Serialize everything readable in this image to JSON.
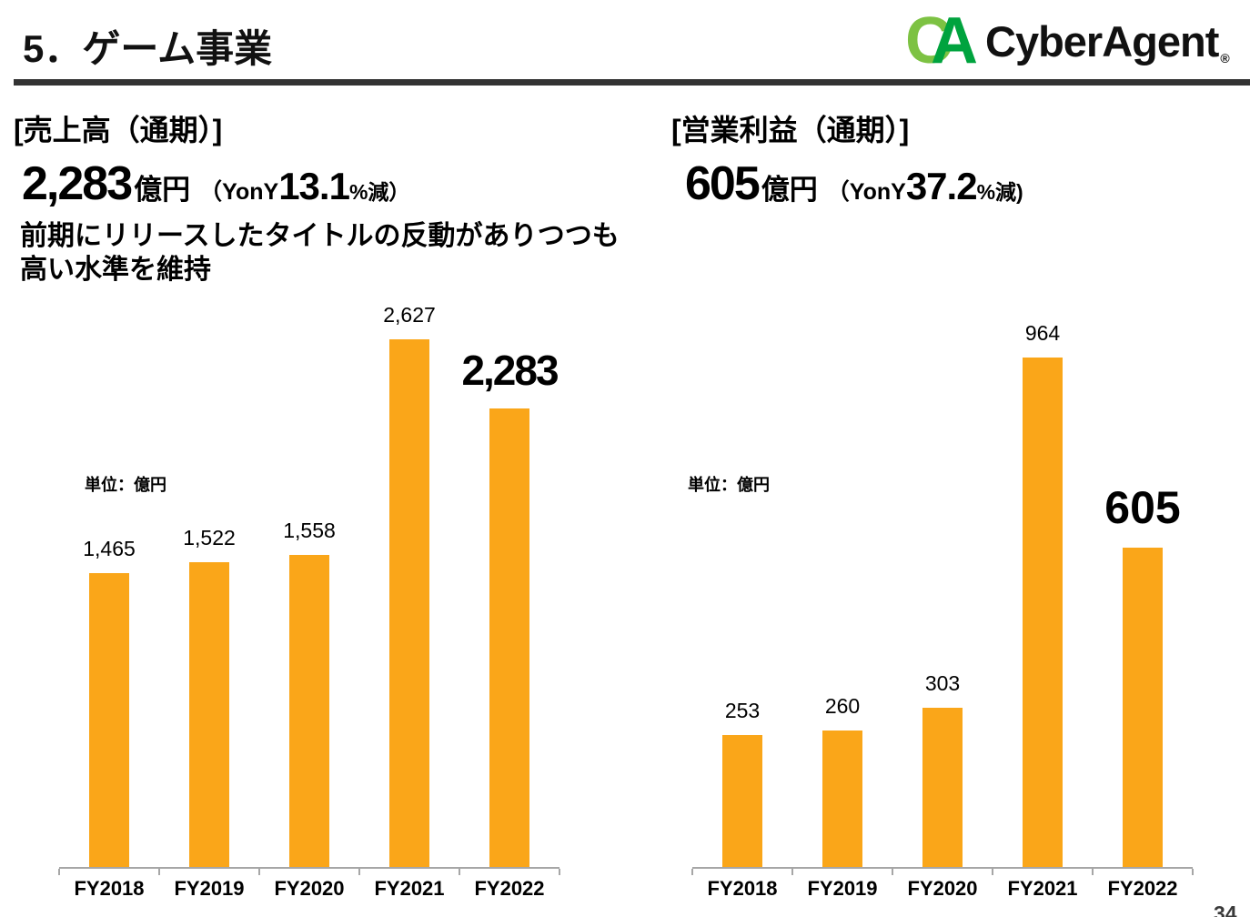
{
  "header": {
    "title": "5．ゲーム事業",
    "logo": {
      "mark_c": "C",
      "mark_a": "A",
      "text": "CyberAgent",
      "reg": "®"
    }
  },
  "panels": {
    "revenue": {
      "bracket_title": "[売上高（通期）]",
      "amount": "2,283",
      "unit": "億円",
      "yoy_prefix": "（YonY",
      "yoy_value": "13.1",
      "yoy_suffix": "%減）",
      "description_line1": "前期にリリースしたタイトルの反動がありつつも",
      "description_line2": "高い水準を維持"
    },
    "operating_profit": {
      "bracket_title": "[営業利益（通期）]",
      "amount": "605",
      "unit": "億円",
      "yoy_prefix": "（YonY ",
      "yoy_value": "37.2",
      "yoy_suffix": "%減)"
    }
  },
  "chart_data": [
    {
      "type": "bar",
      "title": "売上高（通期）",
      "unit_label": "単位：億円",
      "categories": [
        "FY2018",
        "FY2019",
        "FY2020",
        "FY2021",
        "FY2022"
      ],
      "values": [
        1465,
        1522,
        1558,
        2627,
        2283
      ],
      "value_labels": [
        "1,465",
        "1,522",
        "1,558",
        "2,627",
        "2,283"
      ],
      "emphasis_index": 4,
      "xlabel": "",
      "ylabel": "億円",
      "ylim": [
        0,
        2700
      ],
      "grid": false,
      "legend": "none",
      "bar_color": "#FAA619"
    },
    {
      "type": "bar",
      "title": "営業利益（通期）",
      "unit_label": "単位：億円",
      "categories": [
        "FY2018",
        "FY2019",
        "FY2020",
        "FY2021",
        "FY2022"
      ],
      "values": [
        253,
        260,
        303,
        964,
        605
      ],
      "value_labels": [
        "253",
        "260",
        "303",
        "964",
        "605"
      ],
      "emphasis_index": 4,
      "xlabel": "",
      "ylabel": "億円",
      "ylim": [
        0,
        1000
      ],
      "grid": false,
      "legend": "none",
      "bar_color": "#FAA619"
    }
  ],
  "page_number": "34",
  "colors": {
    "bar": "#FAA619",
    "axis": "#A6A6A6",
    "title_rule": "#333333",
    "logo_light_green": "#7DC243",
    "logo_dark_green": "#00A33E",
    "text": "#000000"
  }
}
